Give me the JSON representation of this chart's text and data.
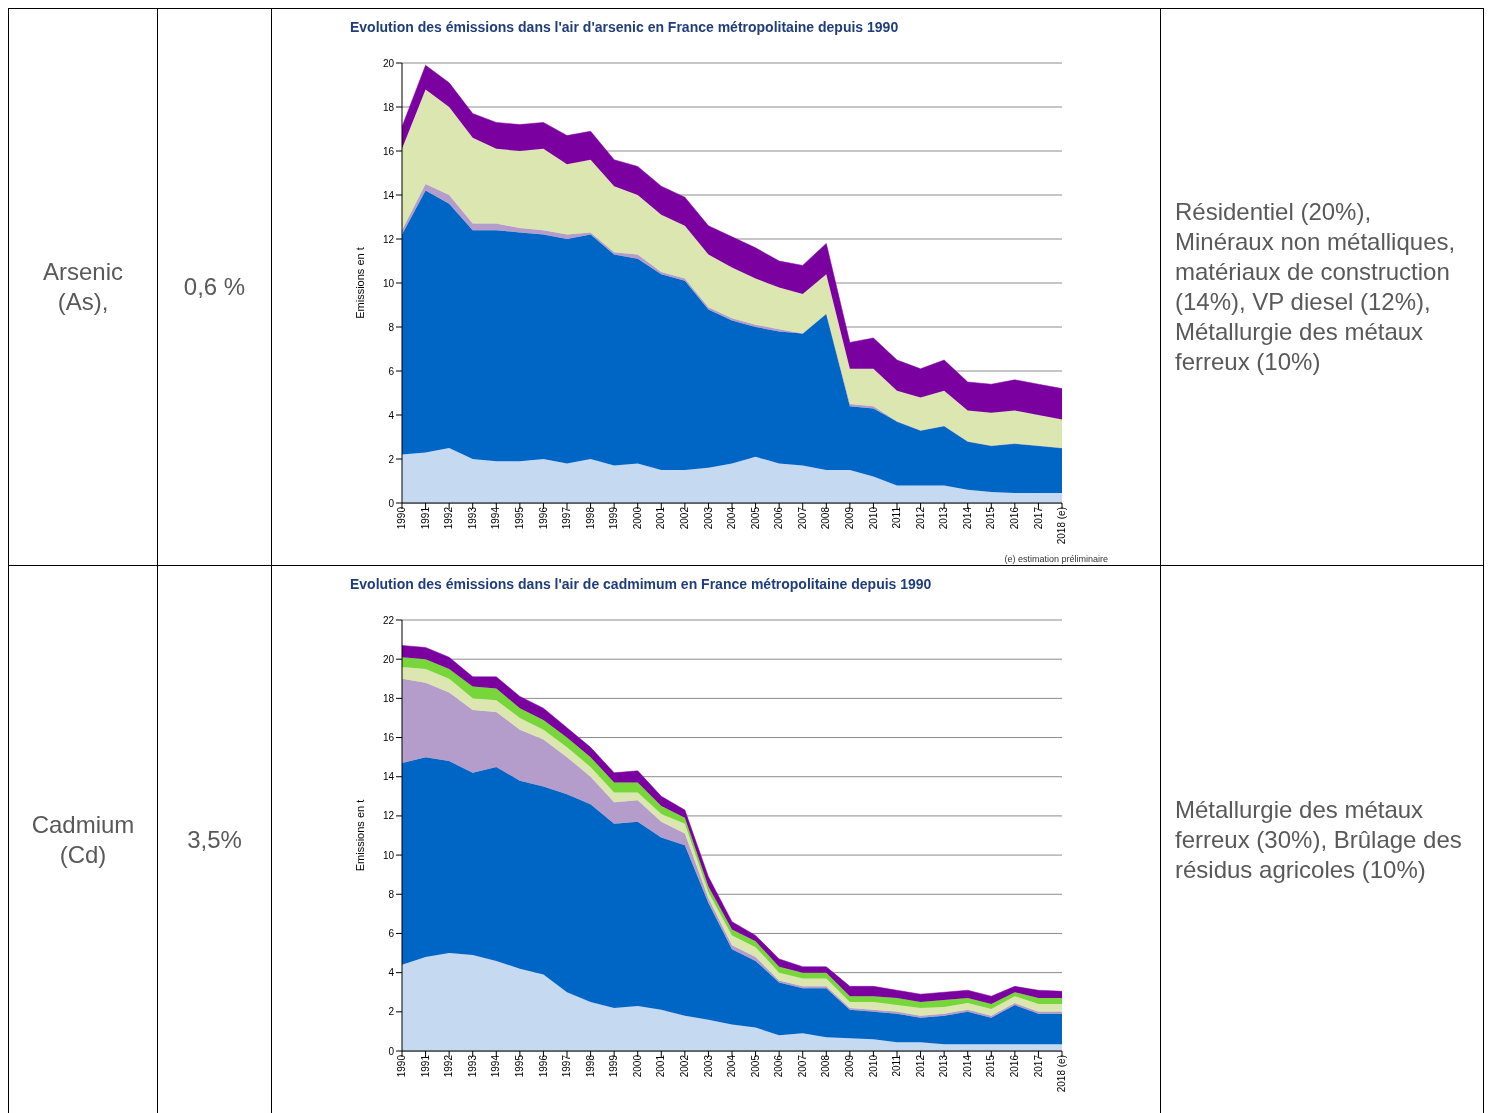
{
  "chart_data": [
    {
      "type": "other",
      "annotations": [
        "Arsenic (As),"
      ]
    },
    {
      "type": "other",
      "annotations": [
        "0,6 %"
      ]
    },
    {
      "type": "area",
      "stacked": true,
      "title": "Evolution des émissions dans l'air d'arsenic en France métropolitaine depuis 1990",
      "ylabel": "Emissions en t",
      "annotations": [
        "(e) estimation préliminaire"
      ],
      "grid": "y",
      "ylim": [
        0,
        20
      ],
      "yticks": [
        0,
        2,
        4,
        6,
        8,
        10,
        12,
        14,
        16,
        18,
        20
      ],
      "categories": [
        "1990",
        "1991",
        "1992",
        "1993",
        "1994",
        "1995",
        "1996",
        "1997",
        "1998",
        "1999",
        "2000",
        "2001",
        "2002",
        "2003",
        "2004",
        "2005",
        "2006",
        "2007",
        "2008",
        "2009",
        "2010",
        "2011",
        "2012",
        "2013",
        "2014",
        "2015",
        "2016",
        "2017",
        "2018 (e)"
      ],
      "series": [
        {
          "color": "#c5d9f1",
          "values": [
            2.2,
            2.3,
            2.5,
            2.0,
            1.9,
            1.9,
            2.0,
            1.8,
            2.0,
            1.7,
            1.8,
            1.5,
            1.5,
            1.6,
            1.8,
            2.1,
            1.8,
            1.7,
            1.5,
            1.5,
            1.2,
            0.8,
            0.8,
            0.8,
            0.6,
            0.5,
            0.45,
            0.45,
            0.45
          ]
        },
        {
          "color": "#0066c6",
          "values": [
            10.0,
            11.9,
            11.1,
            10.4,
            10.5,
            10.4,
            10.2,
            10.2,
            10.2,
            9.6,
            9.3,
            8.9,
            8.6,
            7.2,
            6.5,
            5.9,
            6.0,
            6.0,
            7.1,
            2.9,
            3.1,
            2.9,
            2.5,
            2.7,
            2.2,
            2.1,
            2.25,
            2.15,
            2.05
          ]
        },
        {
          "color": "#b49dcb",
          "values": [
            0.2,
            0.3,
            0.4,
            0.3,
            0.3,
            0.2,
            0.2,
            0.2,
            0.1,
            0.1,
            0.2,
            0.1,
            0.1,
            0.1,
            0.1,
            0.1,
            0.1,
            0,
            0,
            0.1,
            0.1,
            0,
            0,
            0,
            0,
            0,
            0,
            0,
            0
          ]
        },
        {
          "color": "#dce6b0",
          "values": [
            3.7,
            4.3,
            4.0,
            3.9,
            3.4,
            3.5,
            3.7,
            3.2,
            3.3,
            3.0,
            2.7,
            2.6,
            2.4,
            2.4,
            2.3,
            2.1,
            1.9,
            1.8,
            1.8,
            1.6,
            1.7,
            1.4,
            1.5,
            1.6,
            1.4,
            1.5,
            1.5,
            1.4,
            1.3
          ]
        },
        {
          "color": "#7a00a0",
          "values": [
            1.0,
            1.1,
            1.1,
            1.1,
            1.2,
            1.2,
            1.2,
            1.3,
            1.3,
            1.2,
            1.3,
            1.3,
            1.3,
            1.3,
            1.4,
            1.4,
            1.2,
            1.3,
            1.4,
            1.2,
            1.4,
            1.4,
            1.3,
            1.4,
            1.3,
            1.3,
            1.4,
            1.4,
            1.4
          ]
        }
      ]
    },
    {
      "type": "other",
      "annotations": [
        "Résidentiel (20%), Minéraux non métalliques, matériaux de construction (14%), VP diesel (12%), Métallurgie des métaux ferreux (10%)"
      ]
    },
    {
      "type": "other",
      "annotations": [
        "Cadmium (Cd)"
      ]
    },
    {
      "type": "other",
      "annotations": [
        "3,5%"
      ]
    },
    {
      "type": "area",
      "stacked": true,
      "title": "Evolution des émissions dans l'air de cadmimum en France métropolitaine depuis 1990",
      "ylabel": "Emissions en t",
      "grid": "y",
      "ylim": [
        0,
        22
      ],
      "yticks": [
        0,
        2,
        4,
        6,
        8,
        10,
        12,
        14,
        16,
        18,
        20,
        22
      ],
      "categories": [
        "1990",
        "1991",
        "1992",
        "1993",
        "1994",
        "1995",
        "1996",
        "1997",
        "1998",
        "1999",
        "2000",
        "2001",
        "2002",
        "2003",
        "2004",
        "2005",
        "2006",
        "2007",
        "2008",
        "2009",
        "2010",
        "2011",
        "2012",
        "2013",
        "2014",
        "2015",
        "2016",
        "2017",
        "2018 (e)"
      ],
      "series": [
        {
          "color": "#c5d9f1",
          "values": [
            4.4,
            4.8,
            5.0,
            4.9,
            4.6,
            4.2,
            3.9,
            3.0,
            2.5,
            2.2,
            2.3,
            2.1,
            1.8,
            1.6,
            1.35,
            1.2,
            0.8,
            0.9,
            0.7,
            0.65,
            0.6,
            0.45,
            0.45,
            0.35,
            0.35,
            0.35,
            0.35,
            0.35,
            0.35
          ]
        },
        {
          "color": "#0066c6",
          "values": [
            10.3,
            10.2,
            9.8,
            9.3,
            9.9,
            9.6,
            9.6,
            10.1,
            10.1,
            9.4,
            9.4,
            8.8,
            8.7,
            5.95,
            3.85,
            3.4,
            2.7,
            2.3,
            2.5,
            1.45,
            1.4,
            1.45,
            1.25,
            1.45,
            1.65,
            1.35,
            2.0,
            1.55,
            1.55
          ]
        },
        {
          "color": "#b49dcb",
          "values": [
            4.3,
            3.8,
            3.5,
            3.2,
            2.8,
            2.6,
            2.4,
            1.9,
            1.4,
            1.1,
            1.1,
            0.8,
            0.6,
            0.25,
            0.2,
            0.2,
            0.1,
            0.1,
            0.1,
            0.1,
            0.1,
            0.1,
            0.1,
            0.1,
            0.1,
            0.1,
            0.1,
            0.1,
            0.1
          ]
        },
        {
          "color": "#dce6b0",
          "values": [
            0.6,
            0.7,
            0.7,
            0.6,
            0.6,
            0.6,
            0.5,
            0.5,
            0.5,
            0.5,
            0.4,
            0.4,
            0.5,
            0.3,
            0.5,
            0.5,
            0.4,
            0.4,
            0.4,
            0.3,
            0.4,
            0.35,
            0.4,
            0.35,
            0.35,
            0.35,
            0.35,
            0.4,
            0.4
          ]
        },
        {
          "color": "#77d63a",
          "values": [
            0.5,
            0.5,
            0.5,
            0.6,
            0.6,
            0.5,
            0.5,
            0.5,
            0.5,
            0.5,
            0.5,
            0.4,
            0.3,
            0.3,
            0.3,
            0.3,
            0.3,
            0.3,
            0.3,
            0.3,
            0.3,
            0.35,
            0.3,
            0.35,
            0.25,
            0.25,
            0.2,
            0.3,
            0.3
          ]
        },
        {
          "color": "#7a00a0",
          "values": [
            0.6,
            0.6,
            0.6,
            0.5,
            0.6,
            0.6,
            0.6,
            0.5,
            0.5,
            0.5,
            0.6,
            0.5,
            0.4,
            0.5,
            0.4,
            0.3,
            0.4,
            0.3,
            0.3,
            0.5,
            0.5,
            0.4,
            0.4,
            0.4,
            0.4,
            0.4,
            0.3,
            0.4,
            0.35
          ]
        }
      ]
    },
    {
      "type": "other",
      "annotations": [
        "Métallurgie des métaux ferreux (30%), Brûlage des résidus agricoles (10%)"
      ]
    }
  ]
}
